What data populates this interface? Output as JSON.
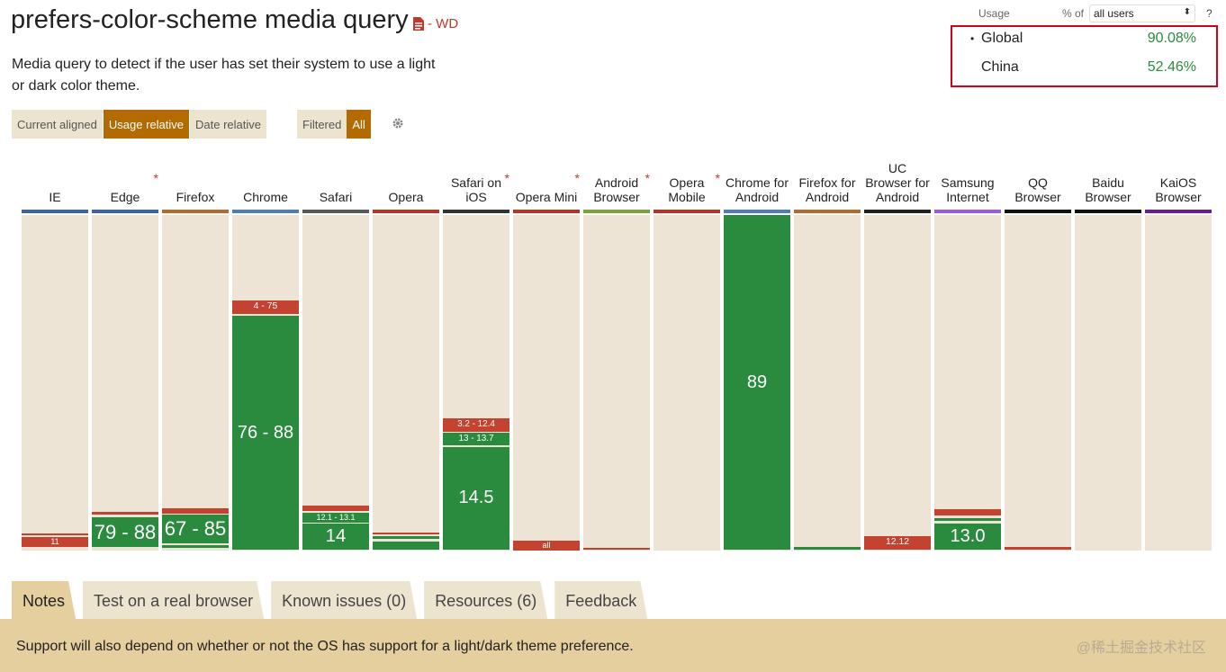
{
  "header": {
    "title": "prefers-color-scheme media query",
    "spec_status": "- WD",
    "description": "Media query to detect if the user has set their system to use a light or dark color theme."
  },
  "view_toggle": [
    "Current aligned",
    "Usage relative",
    "Date relative"
  ],
  "view_active": "Usage relative",
  "filter": {
    "label": "Filtered",
    "active": "All"
  },
  "usage": {
    "label": "Usage",
    "pct_of": "% of",
    "users_option": "all users",
    "help": "?",
    "rows": [
      {
        "bullet": "•",
        "name": "Global",
        "value": "90.08%"
      },
      {
        "bullet": "",
        "name": "China",
        "value": "52.46%"
      }
    ]
  },
  "colors": {
    "supported": "#2a8a3e",
    "unsupported": "#c44230",
    "track": "#ede4d6",
    "accent": "#b36a00",
    "highlight_border": "#d0021b"
  },
  "browsers": [
    {
      "name": "IE",
      "star": false,
      "color": "#3d62a8",
      "cells": [
        {
          "s": "r",
          "label": "",
          "top": 94.8,
          "h": 0.4
        },
        {
          "s": "r",
          "label": "11",
          "top": 96.0,
          "h": 3.0
        }
      ]
    },
    {
      "name": "Edge",
      "star": true,
      "color": "#3d62a8",
      "cells": [
        {
          "s": "r",
          "label": "",
          "top": 88.5,
          "h": 0.7
        },
        {
          "s": "g",
          "label": "79 - 88",
          "top": 90.0,
          "h": 9.0
        }
      ]
    },
    {
      "name": "Firefox",
      "star": false,
      "color": "#b36a2b",
      "cells": [
        {
          "s": "r",
          "label": "",
          "top": 87.4,
          "h": 1.5
        },
        {
          "s": "g",
          "label": "67 - 85",
          "top": 89.4,
          "h": 8.5
        },
        {
          "s": "g",
          "label": "",
          "top": 98.3,
          "h": 0.8
        }
      ]
    },
    {
      "name": "Chrome",
      "star": false,
      "color": "#4d7eb8",
      "cells": [
        {
          "s": "r",
          "label": "4 - 75",
          "top": 25.5,
          "h": 4.0
        },
        {
          "s": "g",
          "label": "76 - 88",
          "top": 30.0,
          "h": 69.8
        }
      ]
    },
    {
      "name": "Safari",
      "star": false,
      "color": "#5a5a5a",
      "cells": [
        {
          "s": "r",
          "label": "",
          "top": 86.5,
          "h": 1.8
        },
        {
          "s": "g",
          "label": "12.1 - 13.1",
          "top": 88.8,
          "h": 2.8
        },
        {
          "s": "g",
          "label": "14",
          "top": 92.0,
          "h": 7.8
        }
      ]
    },
    {
      "name": "Opera",
      "star": false,
      "color": "#b83228",
      "cells": [
        {
          "s": "r",
          "label": "",
          "top": 94.6,
          "h": 0.6
        },
        {
          "s": "g",
          "label": "",
          "top": 95.8,
          "h": 0.6
        },
        {
          "s": "g",
          "label": "",
          "top": 97.3,
          "h": 2.3
        }
      ]
    },
    {
      "name": "Safari on iOS",
      "star": true,
      "color": "#333333",
      "cells": [
        {
          "s": "r",
          "label": "3.2 - 12.4",
          "top": 60.7,
          "h": 3.8
        },
        {
          "s": "g",
          "label": "13 - 13.7",
          "top": 64.9,
          "h": 3.8
        },
        {
          "s": "g",
          "label": "14.5",
          "top": 69.3,
          "h": 30.5
        }
      ]
    },
    {
      "name": "Opera Mini",
      "star": true,
      "color": "#b83228",
      "cells": [
        {
          "s": "r",
          "label": "all",
          "top": 97.1,
          "h": 2.8
        }
      ]
    },
    {
      "name": "Android Browser",
      "star": true,
      "color": "#7ca33a",
      "cells": [
        {
          "s": "r",
          "label": "",
          "top": 99.3,
          "h": 0.5
        }
      ]
    },
    {
      "name": "Opera Mobile",
      "star": true,
      "color": "#b83228",
      "cells": []
    },
    {
      "name": "Chrome for Android",
      "star": false,
      "color": "#4d7eb8",
      "cells": [
        {
          "s": "g",
          "label": "89",
          "top": 0.0,
          "h": 99.8
        }
      ]
    },
    {
      "name": "Firefox for Android",
      "star": false,
      "color": "#b36a2b",
      "cells": [
        {
          "s": "g",
          "label": "",
          "top": 98.8,
          "h": 0.9
        }
      ]
    },
    {
      "name": "UC Browser for Android",
      "star": false,
      "color": "#222222",
      "cells": [
        {
          "s": "r",
          "label": "12.12",
          "top": 95.7,
          "h": 4.0
        }
      ]
    },
    {
      "name": "Samsung Internet",
      "star": false,
      "color": "#9b5be0",
      "cells": [
        {
          "s": "r",
          "label": "",
          "top": 87.7,
          "h": 1.8
        },
        {
          "s": "g",
          "label": "",
          "top": 90.3,
          "h": 0.8
        },
        {
          "s": "g",
          "label": "13.0",
          "top": 92.0,
          "h": 7.7
        }
      ]
    },
    {
      "name": "QQ Browser",
      "star": false,
      "color": "#111111",
      "cells": [
        {
          "s": "r",
          "label": "",
          "top": 99.0,
          "h": 0.6
        }
      ]
    },
    {
      "name": "Baidu Browser",
      "star": false,
      "color": "#111111",
      "cells": []
    },
    {
      "name": "KaiOS Browser",
      "star": false,
      "color": "#6a1b9a",
      "cells": []
    }
  ],
  "tabs": [
    "Notes",
    "Test on a real browser",
    "Known issues (0)",
    "Resources (6)",
    "Feedback"
  ],
  "tab_active": "Notes",
  "note": "Support will also depend on whether or not the OS has support for a light/dark theme preference.",
  "watermark": "@稀土掘金技术社区"
}
